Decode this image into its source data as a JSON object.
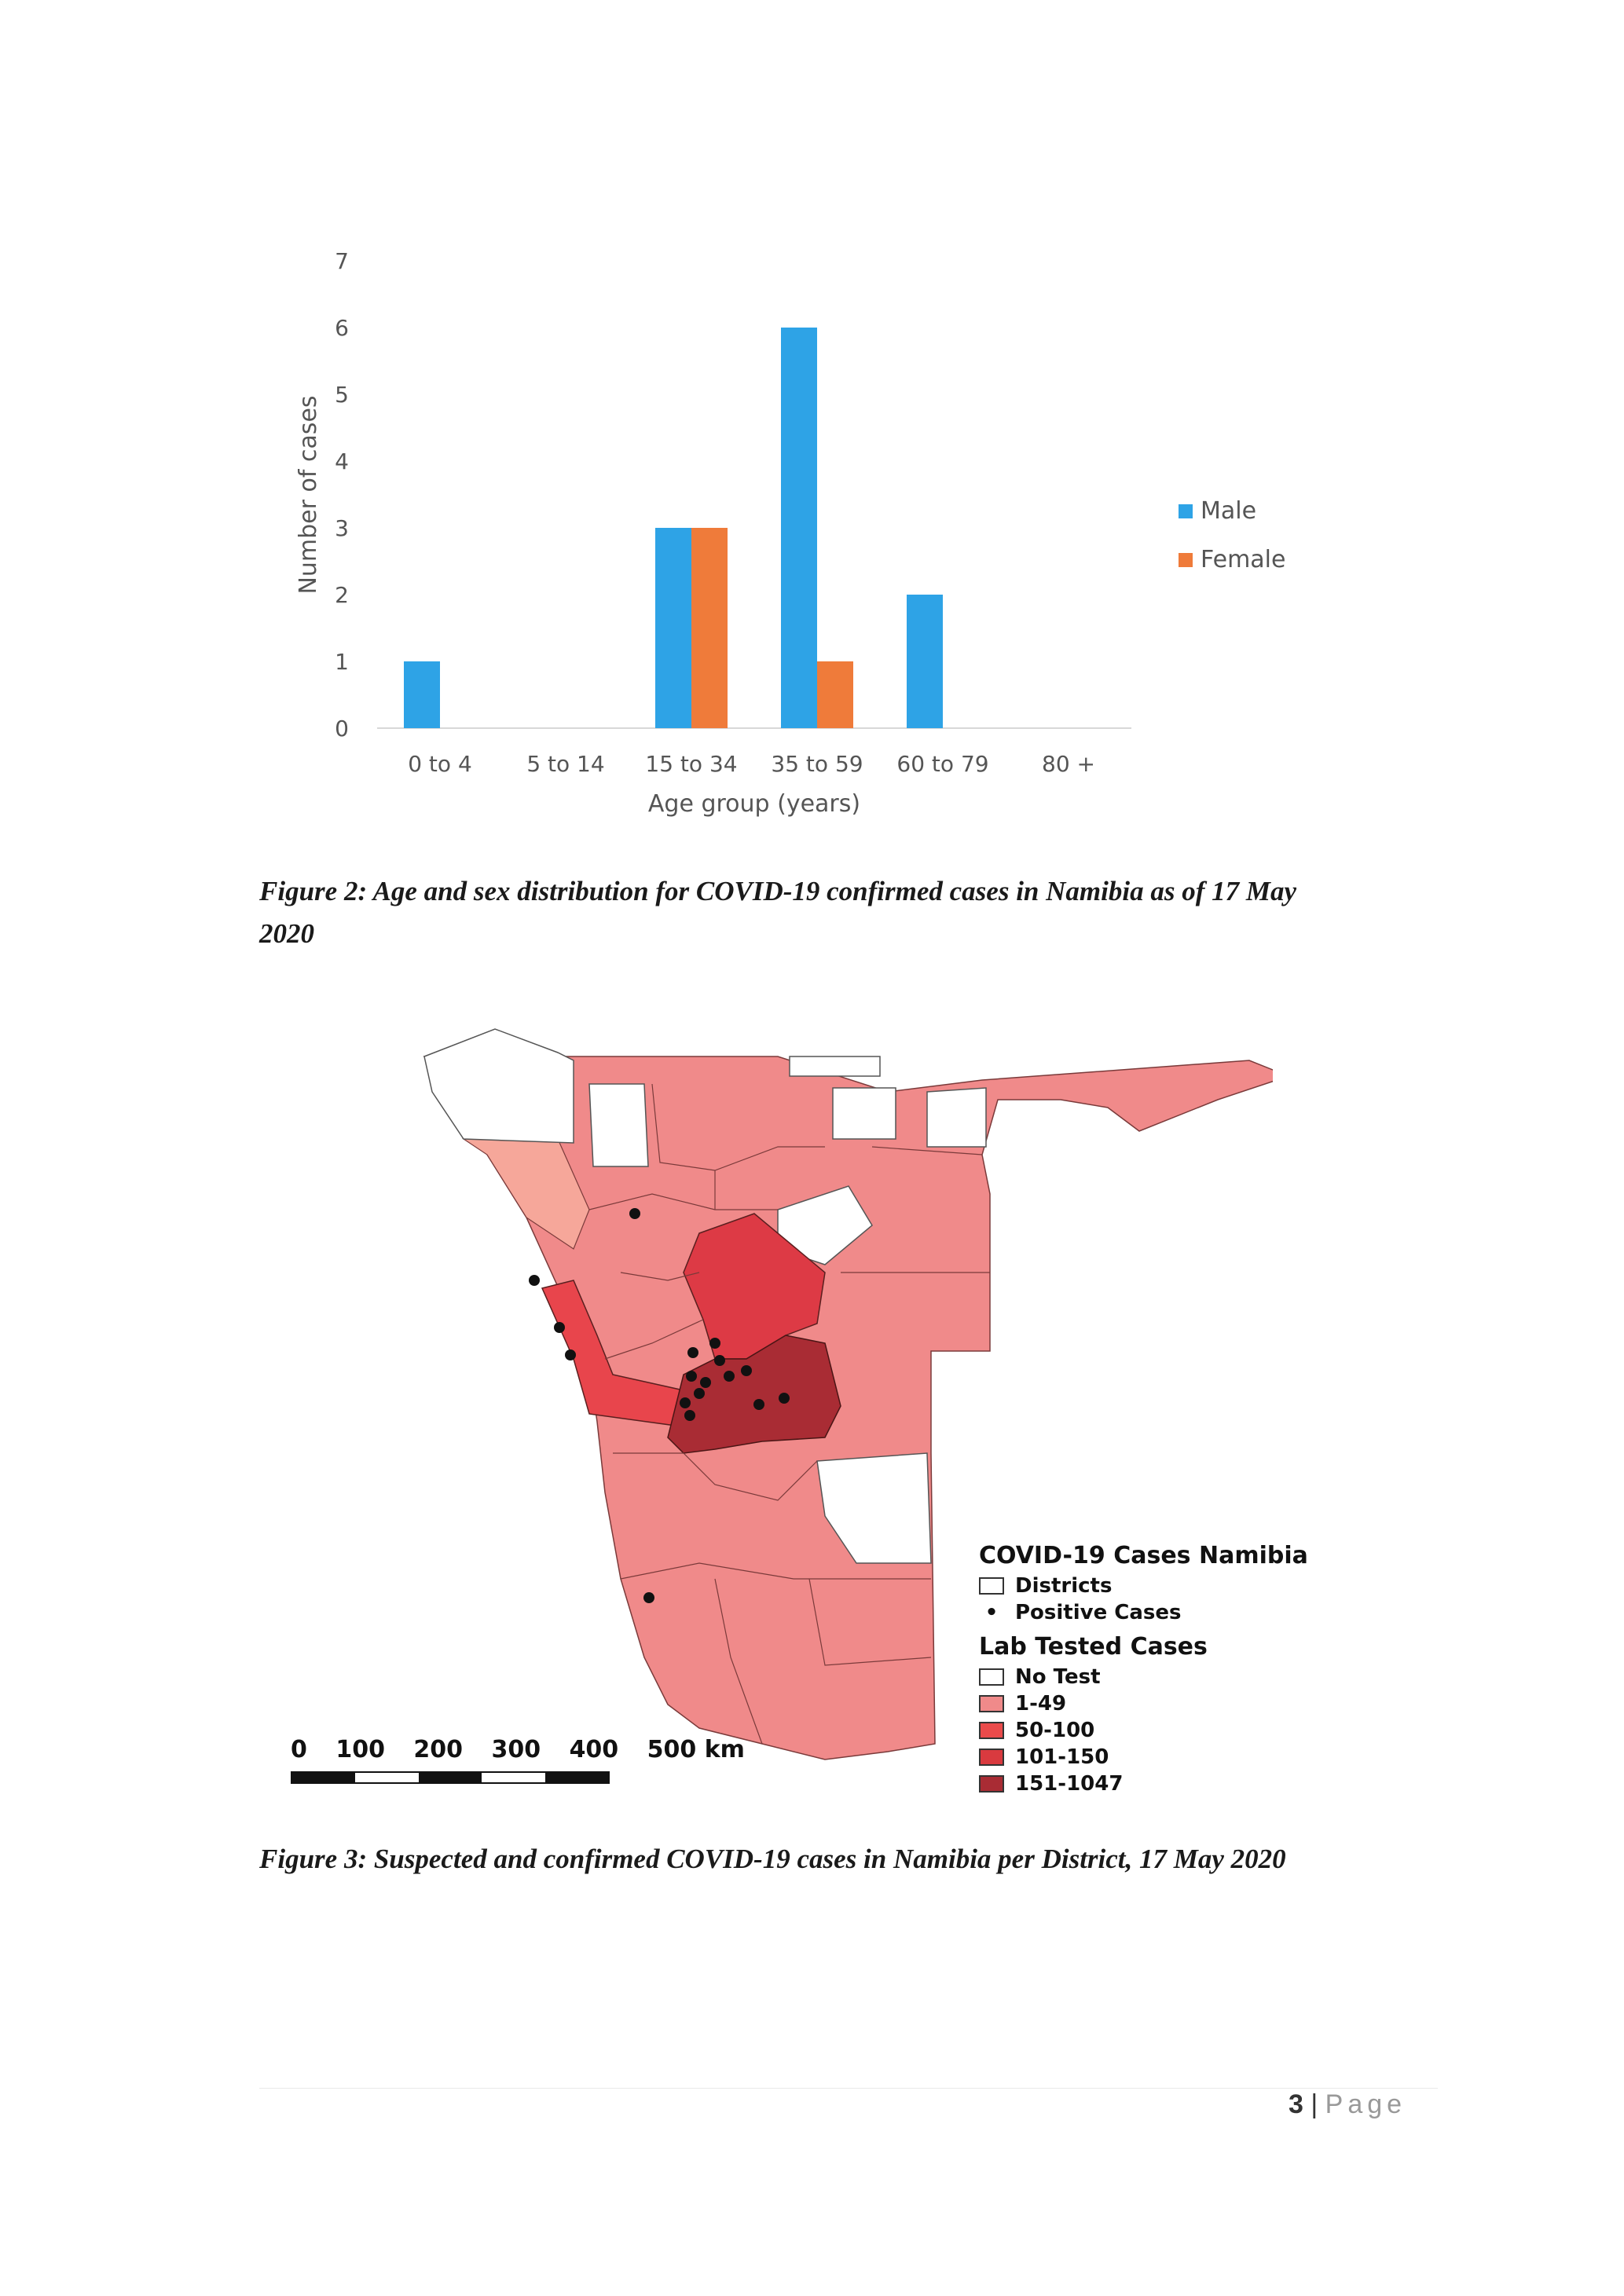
{
  "chart_data": {
    "type": "bar",
    "categories": [
      "0 to 4",
      "5 to 14",
      "15 to 34",
      "35 to 59",
      "60 to 79",
      "80 +"
    ],
    "series": [
      {
        "name": "Male",
        "values": [
          1,
          0,
          3,
          6,
          2,
          0
        ],
        "color": "#2ea3e6"
      },
      {
        "name": "Female",
        "values": [
          0,
          0,
          3,
          1,
          0,
          0
        ],
        "color": "#ef7b3a"
      }
    ],
    "xlabel": "Age group (years)",
    "ylabel": "Number of cases",
    "ylim": [
      0,
      7
    ],
    "yticks": [
      "0",
      "1",
      "2",
      "3",
      "4",
      "5",
      "6",
      "7"
    ],
    "legend_position": "right"
  },
  "captions": {
    "figure2_line1": "Figure 2: Age and sex distribution for COVID-19 confirmed cases in Namibia as of 17 May",
    "figure2_line2": "2020",
    "figure3": "Figure 3: Suspected and confirmed COVID-19 cases in Namibia per District, 17 May 2020"
  },
  "map": {
    "legend_title": "COVID-19 Cases Namibia",
    "legend_districts": "Districts",
    "legend_positive": "Positive Cases",
    "legend_lab_title": "Lab Tested Cases",
    "classes": [
      {
        "label": "No Test",
        "color": "#ffffff"
      },
      {
        "label": "1-49",
        "color": "#f08a8a"
      },
      {
        "label": "50-100",
        "color": "#ea4b4b"
      },
      {
        "label": "101-150",
        "color": "#d93a3f"
      },
      {
        "label": "151-1047",
        "color": "#a92c34"
      }
    ],
    "scale_labels": [
      "0",
      "100",
      "200",
      "300",
      "400",
      "500 km"
    ]
  },
  "footer": {
    "page_number": "3",
    "separator": "|",
    "page_word": "Page"
  }
}
